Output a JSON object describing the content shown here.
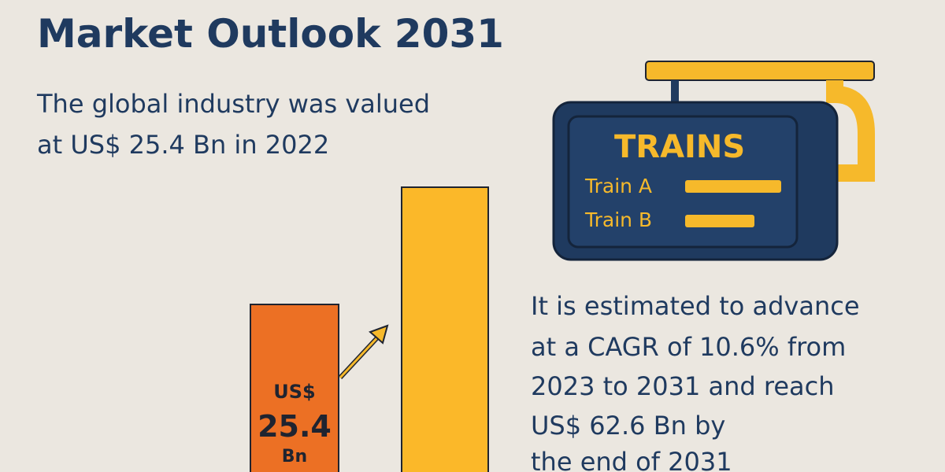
{
  "header": {
    "title": "Market Outlook 2031"
  },
  "intro": {
    "lines": [
      "The global industry was valued",
      "at US$ 25.4 Bn in 2022"
    ]
  },
  "sign": {
    "heading": "TRAINS",
    "rows": [
      "Train A",
      "Train B"
    ]
  },
  "bar_label": {
    "currency": "US$",
    "amount": "25.4",
    "unit": "Bn"
  },
  "outlook": {
    "lines": [
      "It is estimated to advance",
      "at a CAGR of 10.6% from",
      "2023 to 2031 and reach",
      "US$ 62.6 Bn by",
      "the end of 2031"
    ]
  }
}
